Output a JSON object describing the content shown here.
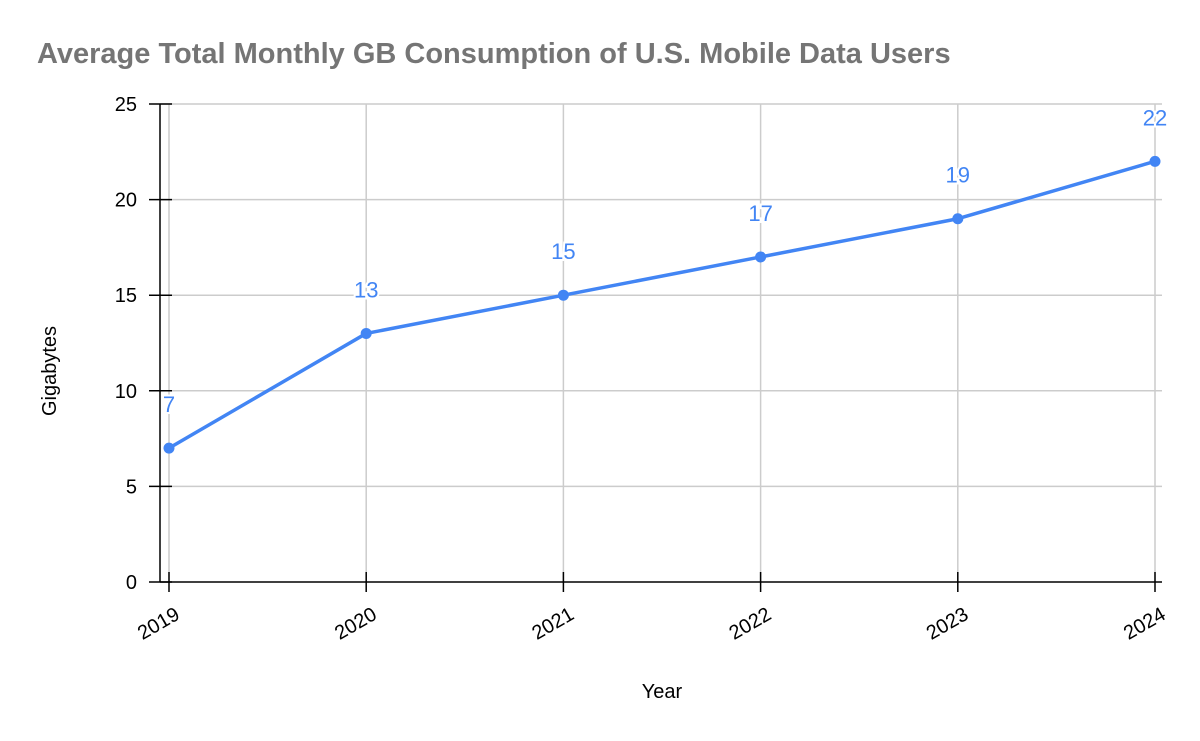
{
  "chart_data": {
    "type": "line",
    "title": "Average Total Monthly GB Consumption of U.S. Mobile Data Users",
    "xlabel": "Year",
    "ylabel": "Gigabytes",
    "categories": [
      "2019",
      "2020",
      "2021",
      "2022",
      "2023",
      "2024"
    ],
    "series": [
      {
        "values": [
          7,
          13,
          15,
          17,
          19,
          22
        ],
        "color": "#4285f4"
      }
    ],
    "data_labels": [
      "7",
      "13",
      "15",
      "17",
      "19",
      "22"
    ],
    "yticks": [
      "0",
      "5",
      "10",
      "15",
      "20",
      "25"
    ],
    "ylim": [
      0,
      25
    ],
    "grid": true,
    "legend": "none"
  }
}
